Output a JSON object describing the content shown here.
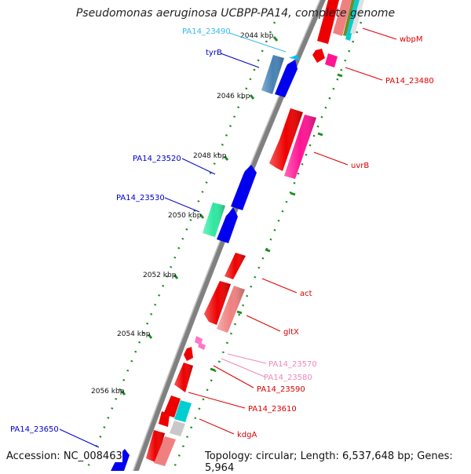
{
  "title": "Pseudomonas aeruginosa UCBPP-PA14, complete genome",
  "footer": {
    "accession": "Accession: NC_008463",
    "topology": "Topology: circular; Length: 6,537,648 bp; Genes: 5,964"
  },
  "colors": {
    "backbone": "#808080",
    "tick": "#228b22",
    "label_blue": "#0000cc",
    "label_cyan": "#33bbee",
    "label_red": "#dd0000",
    "label_pink": "#ee88bb"
  },
  "scale_labels": [
    "2044 kbp",
    "2046 kbp",
    "2048 kbp",
    "2050 kbp",
    "2052 kbp",
    "2054 kbp",
    "2056 kbp"
  ],
  "gene_labels": [
    {
      "text": "PA14_23490",
      "color": "cyan"
    },
    {
      "text": "tyrB",
      "color": "blue"
    },
    {
      "text": "PA14_23520",
      "color": "blue"
    },
    {
      "text": "PA14_23530",
      "color": "blue"
    },
    {
      "text": "PA14_23650",
      "color": "blue"
    },
    {
      "text": "wbpM",
      "color": "red"
    },
    {
      "text": "PA14_23480",
      "color": "red"
    },
    {
      "text": "uvrB",
      "color": "red"
    },
    {
      "text": "act",
      "color": "red"
    },
    {
      "text": "gltX",
      "color": "red"
    },
    {
      "text": "PA14_23570",
      "color": "pink"
    },
    {
      "text": "PA14_23580",
      "color": "pink"
    },
    {
      "text": "PA14_23590",
      "color": "red"
    },
    {
      "text": "PA14_23610",
      "color": "red"
    },
    {
      "text": "kdgA",
      "color": "red"
    }
  ]
}
